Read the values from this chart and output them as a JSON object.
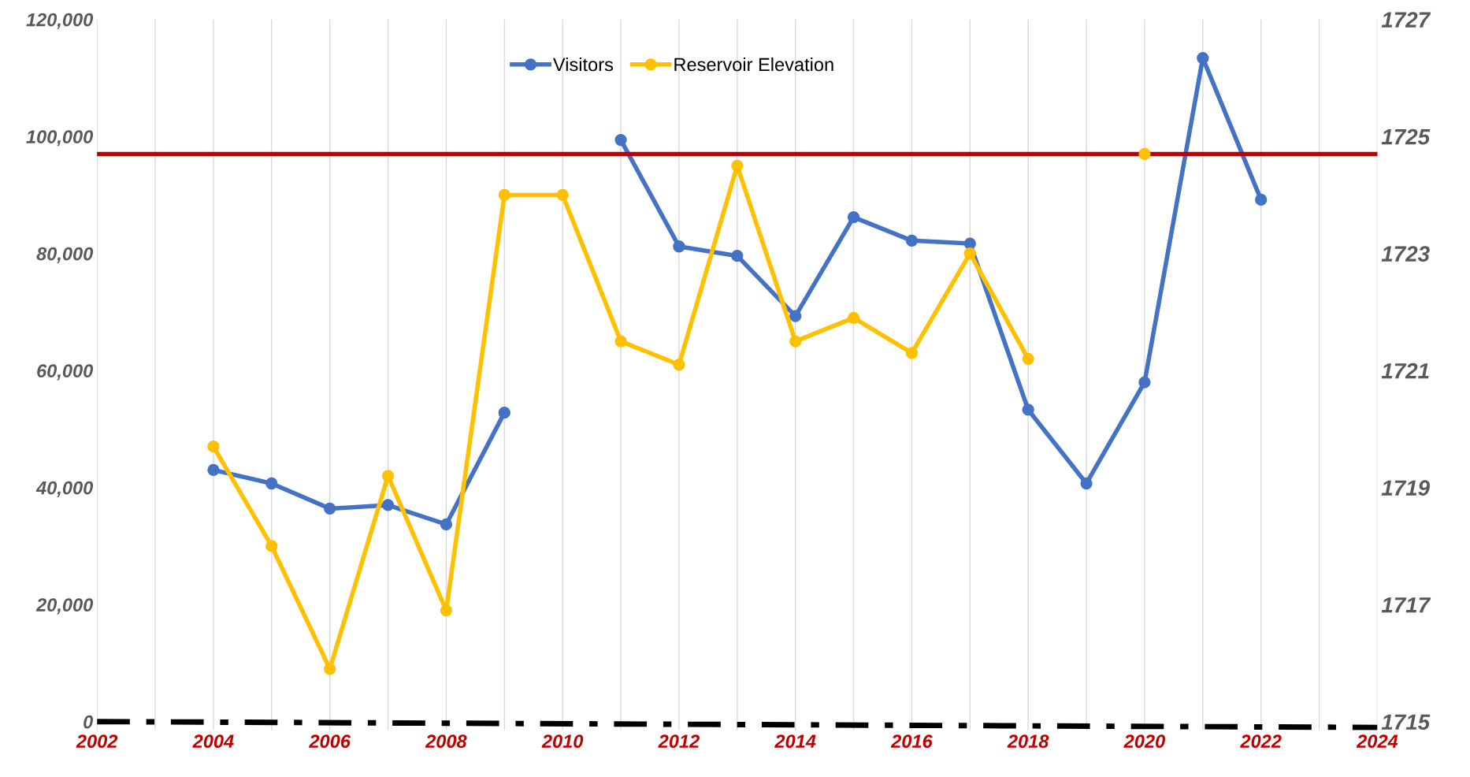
{
  "chart_data": {
    "type": "line",
    "x": [
      2004,
      2005,
      2006,
      2007,
      2008,
      2009,
      2010,
      2011,
      2012,
      2013,
      2014,
      2015,
      2016,
      2017,
      2018,
      2019,
      2020,
      2021,
      2022
    ],
    "series": [
      {
        "name": "Visitors",
        "color": "#4472c4",
        "values": [
          43000,
          40700,
          36400,
          37000,
          33700,
          52800,
          null,
          99400,
          81200,
          79600,
          69300,
          86200,
          82200,
          81700,
          53300,
          40700,
          58000,
          113400,
          89200
        ]
      },
      {
        "name": "Reservoir Elevation",
        "color": "#ffc000",
        "axis": "y2",
        "values": [
          1719.7,
          1718.0,
          1715.9,
          1719.2,
          1716.9,
          1724.0,
          1724.0,
          1721.5,
          1721.1,
          1724.5,
          1721.5,
          1721.9,
          1721.3,
          1723.0,
          1721.2,
          null,
          1724.7,
          null,
          null
        ]
      },
      {
        "color": "#000000",
        "axis": "y2",
        "x": [
          2002,
          2024
        ],
        "values": [
          1715.0,
          1714.9
        ],
        "marker": "none",
        "line_style": "dashdot"
      }
    ],
    "xlim": [
      2002,
      2024
    ],
    "xticks": [
      2002,
      {
        "value": 2003,
        "label": null
      },
      2004,
      {
        "value": 2005,
        "label": null
      },
      2006,
      {
        "value": 2007,
        "label": null
      },
      2008,
      {
        "value": 2009,
        "label": null
      },
      2010,
      {
        "value": 2011,
        "label": null
      },
      2012,
      {
        "value": 2013,
        "label": null
      },
      2014,
      {
        "value": 2015,
        "label": null
      },
      2016,
      {
        "value": 2017,
        "label": null
      },
      2018,
      {
        "value": 2019,
        "label": null
      },
      2020,
      {
        "value": 2021,
        "label": null
      },
      2022,
      {
        "value": 2023,
        "label": null
      },
      2024
    ],
    "ylim": [
      -1500,
      120000
    ],
    "yticks": [
      {
        "value": 0,
        "label": "0"
      },
      {
        "value": 20000,
        "label": "20,000"
      },
      {
        "value": 40000,
        "label": "40,000"
      },
      {
        "value": 60000,
        "label": "60,000"
      },
      {
        "value": 80000,
        "label": "80,000"
      },
      {
        "value": 100000,
        "label": "100,000"
      },
      {
        "value": 120000,
        "label": "120,000"
      }
    ],
    "y2lim": [
      1714.85,
      1727
    ],
    "y2ticks": [
      1715,
      1717,
      1719,
      1721,
      1723,
      1725,
      1727
    ],
    "ref_lines": [
      {
        "axis": "y2",
        "value": 1724.7,
        "color": "#c00000"
      }
    ],
    "grid": "x",
    "legend": "top",
    "marker": "circle",
    "line_style": "solid"
  }
}
